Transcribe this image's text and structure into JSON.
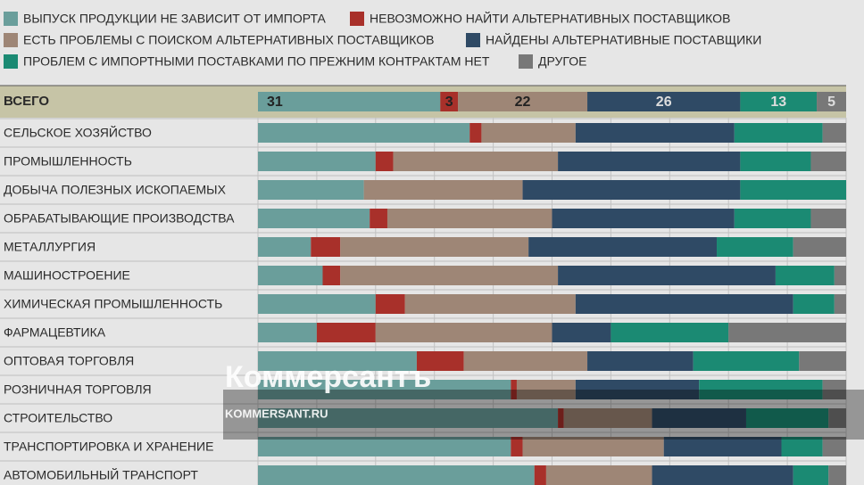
{
  "chart_data": {
    "type": "stacked-bar",
    "series": [
      {
        "name": "ВЫПУСК ПРОДУКЦИИ НЕ ЗАВИСИТ ОТ ИМПОРТА",
        "color": "#6a9e9b",
        "values": [
          36,
          20,
          18,
          19,
          9,
          11,
          20,
          10,
          27,
          43,
          51,
          43,
          47
        ]
      },
      {
        "name": "НЕВОЗМОЖНО НАЙТИ АЛЬТЕРНАТИВНЫХ ПОСТАВЩИКОВ",
        "color": "#a8302a",
        "values": [
          2,
          3,
          0,
          3,
          5,
          3,
          5,
          10,
          8,
          1,
          1,
          2,
          2
        ]
      },
      {
        "name": "ЕСТЬ ПРОБЛЕМЫ С ПОИСКОМ АЛЬТЕРНАТИВНЫХ ПОСТАВЩИКОВ",
        "color": "#9e8676",
        "values": [
          16,
          28,
          27,
          28,
          32,
          37,
          29,
          30,
          21,
          10,
          15,
          24,
          18
        ]
      },
      {
        "name": "НАЙДЕНЫ АЛЬТЕРНАТИВНЫЕ ПОСТАВЩИКИ",
        "color": "#2f4a65",
        "values": [
          27,
          31,
          37,
          31,
          32,
          37,
          37,
          10,
          18,
          21,
          16,
          20,
          24
        ]
      },
      {
        "name": "ПРОБЛЕМ С ИМПОРТНЫМИ ПОСТАВКАМИ ПО ПРЕЖНИМ КОНТРАКТАМ НЕТ",
        "color": "#1b8a73",
        "values": [
          15,
          12,
          18,
          13,
          13,
          10,
          7,
          20,
          18,
          21,
          14,
          7,
          6
        ]
      },
      {
        "name": "ДРУГОЕ",
        "color": "#787878",
        "values": [
          4,
          6,
          0,
          6,
          9,
          2,
          2,
          20,
          8,
          4,
          3,
          4,
          3
        ]
      }
    ],
    "total": {
      "label": "ВСЕГО",
      "values": [
        31,
        3,
        22,
        26,
        13,
        5
      ]
    },
    "categories": [
      "СЕЛЬСКОЕ ХОЗЯЙСТВО",
      "ПРОМЫШЛЕННОСТЬ",
      "ДОБЫЧА ПОЛЕЗНЫХ ИСКОПАЕМЫХ",
      "ОБРАБАТЫВАЮЩИЕ ПРОИЗВОДСТВА",
      "МЕТАЛЛУРГИЯ",
      "МАШИНОСТРОЕНИЕ",
      "ХИМИЧЕСКАЯ ПРОМЫШЛЕННОСТЬ",
      "ФАРМАЦЕВТИКА",
      "ОПТОВАЯ ТОРГОВЛЯ",
      "РОЗНИЧНАЯ ТОРГОВЛЯ",
      "СТРОИТЕЛЬСТВО",
      "ТРАНСПОРТИРОВКА И ХРАНЕНИЕ",
      "АВТОМОБИЛЬНЫЙ ТРАНСПОРТ"
    ],
    "xlim": [
      0,
      100
    ],
    "xticks": [
      0,
      10,
      20,
      30,
      40,
      50,
      60,
      70,
      80,
      90,
      100
    ],
    "grid": true
  },
  "watermark": {
    "logo": "Коммерсантъ",
    "url": "KOMMERSANT.RU"
  }
}
